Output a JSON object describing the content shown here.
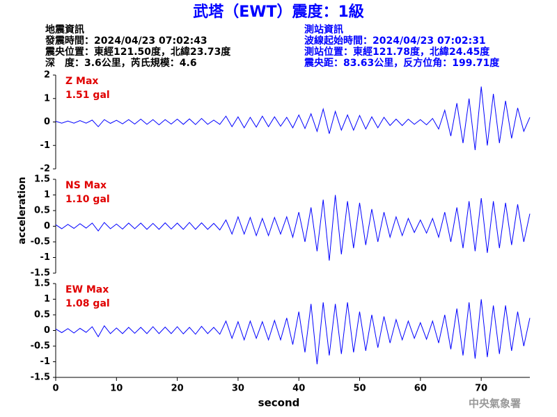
{
  "header": {
    "title": "武塔（EWT）震度：1級",
    "left": [
      "地震資訊",
      "發震時間：2024/04/23 07:02:43",
      "震央位置：東經121.50度，北緯23.73度",
      "深　度：3.6公里，芮氏規模：4.6"
    ],
    "right": [
      "測站資訊",
      "波線起始時間：2024/04/23 07:02:31",
      "測站位置：東經121.78度，北緯24.45度",
      "震央距：83.63公里，反方位角：199.71度"
    ],
    "ylabel": "acceleration",
    "watermark": "中央氣象署"
  },
  "chart_data": [
    {
      "type": "line",
      "label": "Z Max",
      "max_label": "1.51 gal",
      "xlim": [
        0,
        78
      ],
      "ylim": [
        -2,
        2
      ],
      "yticks": [
        -2,
        -1,
        0,
        1,
        2
      ],
      "x": [
        0,
        1,
        2,
        3,
        4,
        5,
        6,
        7,
        8,
        9,
        10,
        11,
        12,
        13,
        14,
        15,
        16,
        17,
        18,
        19,
        20,
        21,
        22,
        23,
        24,
        25,
        26,
        27,
        28,
        29,
        30,
        31,
        32,
        33,
        34,
        35,
        36,
        37,
        38,
        39,
        40,
        41,
        42,
        43,
        44,
        45,
        46,
        47,
        48,
        49,
        50,
        51,
        52,
        53,
        54,
        55,
        56,
        57,
        58,
        59,
        60,
        61,
        62,
        63,
        64,
        65,
        66,
        67,
        68,
        69,
        70,
        71,
        72,
        73,
        74,
        75,
        76,
        77,
        78
      ],
      "series": [
        {
          "name": "Z",
          "color": "#0000ff",
          "values": [
            0.03,
            -0.05,
            0.04,
            -0.05,
            0.06,
            -0.05,
            0.08,
            -0.2,
            0.1,
            -0.06,
            0.07,
            -0.08,
            0.1,
            -0.09,
            0.12,
            -0.1,
            0.1,
            -0.12,
            0.1,
            -0.09,
            0.12,
            -0.1,
            0.13,
            -0.11,
            0.15,
            -0.1,
            0.08,
            -0.1,
            0.25,
            -0.2,
            0.22,
            -0.25,
            0.2,
            -0.22,
            0.25,
            -0.2,
            0.22,
            -0.18,
            0.2,
            -0.25,
            0.3,
            -0.28,
            0.35,
            -0.4,
            0.55,
            -0.5,
            0.45,
            -0.35,
            0.3,
            -0.35,
            0.28,
            -0.3,
            0.22,
            -0.25,
            0.2,
            -0.15,
            0.12,
            -0.15,
            0.12,
            -0.1,
            0.1,
            -0.12,
            0.15,
            -0.3,
            0.5,
            -0.6,
            0.8,
            -0.9,
            1.0,
            -1.2,
            1.51,
            -1.0,
            1.2,
            -0.9,
            0.9,
            -0.7,
            0.6,
            -0.4,
            0.2
          ]
        }
      ]
    },
    {
      "type": "line",
      "label": "NS Max",
      "max_label": "1.10 gal",
      "xlim": [
        0,
        78
      ],
      "ylim": [
        -1.5,
        1.5
      ],
      "yticks": [
        -1.5,
        -1,
        -0.5,
        0,
        0.5,
        1,
        1.5
      ],
      "x": [
        0,
        1,
        2,
        3,
        4,
        5,
        6,
        7,
        8,
        9,
        10,
        11,
        12,
        13,
        14,
        15,
        16,
        17,
        18,
        19,
        20,
        21,
        22,
        23,
        24,
        25,
        26,
        27,
        28,
        29,
        30,
        31,
        32,
        33,
        34,
        35,
        36,
        37,
        38,
        39,
        40,
        41,
        42,
        43,
        44,
        45,
        46,
        47,
        48,
        49,
        50,
        51,
        52,
        53,
        54,
        55,
        56,
        57,
        58,
        59,
        60,
        61,
        62,
        63,
        64,
        65,
        66,
        67,
        68,
        69,
        70,
        71,
        72,
        73,
        74,
        75,
        76,
        77,
        78
      ],
      "series": [
        {
          "name": "NS",
          "color": "#0000ff",
          "values": [
            0.05,
            -0.08,
            0.06,
            -0.07,
            0.08,
            -0.06,
            0.1,
            -0.15,
            0.12,
            -0.08,
            0.07,
            -0.09,
            0.1,
            -0.08,
            0.1,
            -0.1,
            0.09,
            -0.1,
            0.11,
            -0.09,
            0.1,
            -0.1,
            0.12,
            -0.1,
            0.11,
            -0.1,
            0.09,
            -0.12,
            0.2,
            -0.25,
            0.3,
            -0.25,
            0.28,
            -0.3,
            0.25,
            -0.3,
            0.28,
            -0.25,
            0.3,
            -0.35,
            0.45,
            -0.5,
            0.6,
            -0.8,
            0.85,
            -1.1,
            1.0,
            -0.9,
            0.8,
            -0.7,
            0.75,
            -0.6,
            0.55,
            -0.5,
            0.45,
            -0.35,
            0.3,
            -0.3,
            0.25,
            -0.2,
            0.2,
            -0.22,
            0.25,
            -0.35,
            0.45,
            -0.5,
            0.6,
            -0.7,
            0.8,
            -0.8,
            0.9,
            -0.85,
            0.8,
            -0.7,
            0.75,
            -0.6,
            0.7,
            -0.5,
            0.4
          ]
        }
      ]
    },
    {
      "type": "line",
      "label": "EW Max",
      "max_label": "1.08 gal",
      "xlim": [
        0,
        78
      ],
      "ylim": [
        -1.5,
        1.5
      ],
      "yticks": [
        -1.5,
        -1,
        -0.5,
        0,
        0.5,
        1,
        1.5
      ],
      "xticks": [
        0,
        10,
        20,
        30,
        40,
        50,
        60,
        70
      ],
      "xlabel": "second",
      "x": [
        0,
        1,
        2,
        3,
        4,
        5,
        6,
        7,
        8,
        9,
        10,
        11,
        12,
        13,
        14,
        15,
        16,
        17,
        18,
        19,
        20,
        21,
        22,
        23,
        24,
        25,
        26,
        27,
        28,
        29,
        30,
        31,
        32,
        33,
        34,
        35,
        36,
        37,
        38,
        39,
        40,
        41,
        42,
        43,
        44,
        45,
        46,
        47,
        48,
        49,
        50,
        51,
        52,
        53,
        54,
        55,
        56,
        57,
        58,
        59,
        60,
        61,
        62,
        63,
        64,
        65,
        66,
        67,
        68,
        69,
        70,
        71,
        72,
        73,
        74,
        75,
        76,
        77,
        78
      ],
      "series": [
        {
          "name": "EW",
          "color": "#0000ff",
          "values": [
            0.05,
            -0.07,
            0.06,
            -0.08,
            0.07,
            -0.06,
            0.12,
            -0.2,
            0.15,
            -0.1,
            0.08,
            -0.1,
            0.1,
            -0.09,
            0.1,
            -0.1,
            0.12,
            -0.1,
            0.11,
            -0.1,
            0.12,
            -0.11,
            0.1,
            -0.12,
            0.13,
            -0.1,
            0.1,
            -0.12,
            0.3,
            -0.25,
            0.28,
            -0.3,
            0.3,
            -0.25,
            0.28,
            -0.3,
            0.32,
            -0.3,
            0.4,
            -0.45,
            0.6,
            -0.7,
            0.85,
            -1.08,
            0.9,
            -0.8,
            0.85,
            -0.75,
            0.9,
            -0.7,
            0.6,
            -0.65,
            0.5,
            -0.55,
            0.45,
            -0.4,
            0.35,
            -0.3,
            0.3,
            -0.25,
            0.25,
            -0.28,
            0.3,
            -0.4,
            0.5,
            -0.6,
            0.7,
            -0.8,
            0.9,
            -0.9,
            1.0,
            -0.85,
            0.8,
            -0.75,
            0.8,
            -0.65,
            0.6,
            -0.5,
            0.4
          ]
        }
      ]
    }
  ]
}
